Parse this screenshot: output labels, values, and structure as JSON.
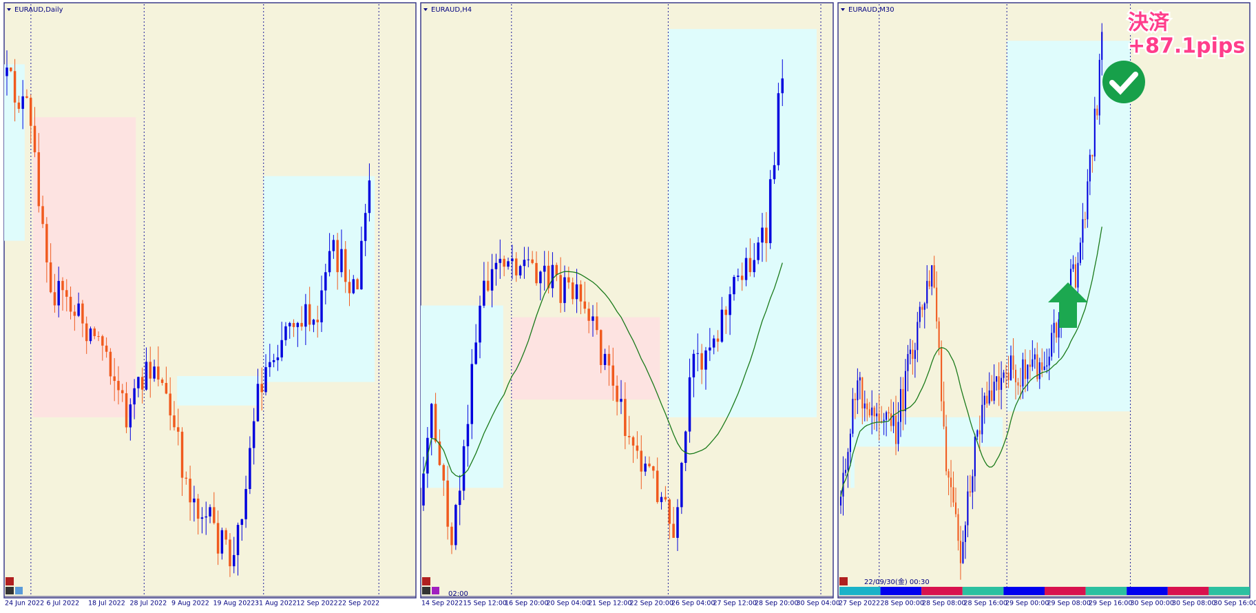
{
  "panels": [
    {
      "title": "EURAUD,Daily",
      "x_labels": [
        "24 Jun 2022",
        "6 Jul 2022",
        "18 Jul 2022",
        "28 Jul 2022",
        "9 Aug 2022",
        "19 Aug 2022",
        "31 Aug 2022",
        "12 Sep 2022",
        "22 Sep 2022"
      ]
    },
    {
      "title": "EURAUD,H4",
      "time_label": "02:00",
      "x_labels": [
        "14 Sep 2022",
        "15 Sep 12:00",
        "16 Sep 20:00",
        "20 Sep 04:00",
        "21 Sep 12:00",
        "22 Sep 20:00",
        "26 Sep 04:00",
        "27 Sep 12:00",
        "28 Sep 20:00",
        "30 Sep 04:00"
      ]
    },
    {
      "title": "EURAUD,M30",
      "time_label": "22/09/30(金) 00:30",
      "x_labels": [
        "27 Sep 2022",
        "28 Sep 00:00",
        "28 Sep 08:00",
        "28 Sep 16:00",
        "29 Sep 00:00",
        "29 Sep 08:00",
        "29 Sep 16:00",
        "30 Sep 00:00",
        "30 Sep 08:00",
        "30 Sep 16:00"
      ]
    }
  ],
  "annotation": {
    "line1": "決済",
    "line2": "+87.1pips"
  }
}
